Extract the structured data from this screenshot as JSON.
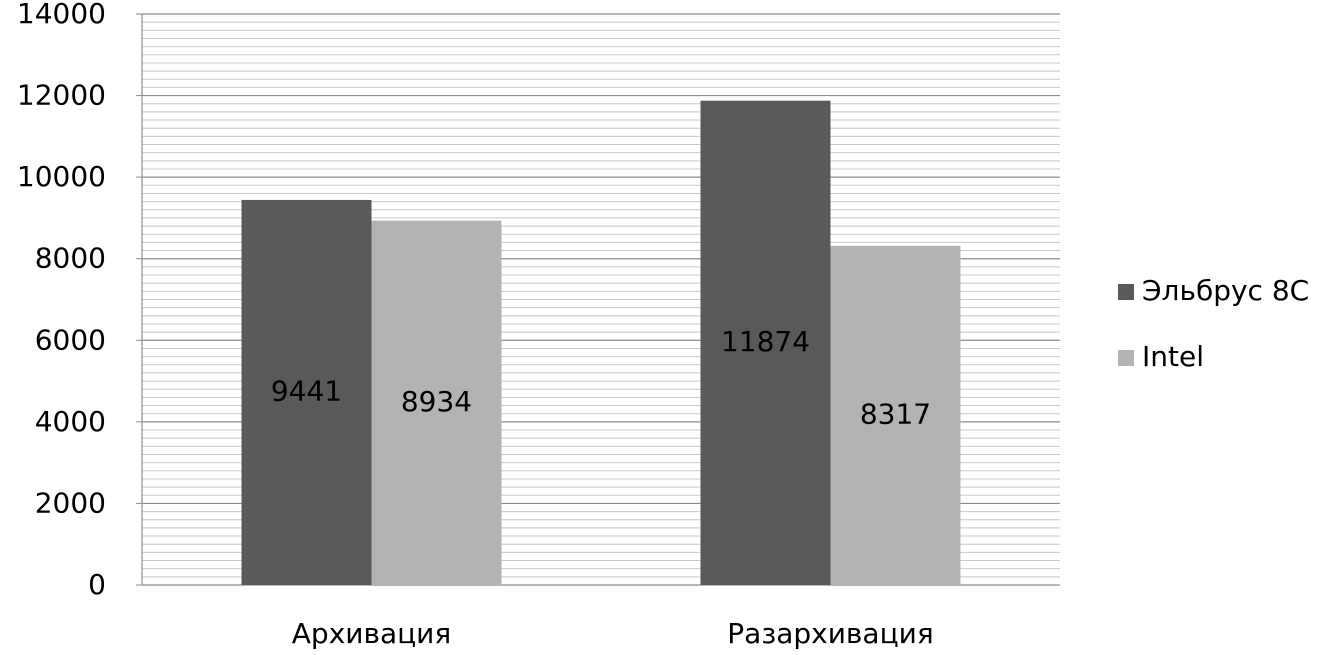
{
  "chart_data": {
    "type": "bar",
    "categories": [
      "Архивация",
      "Разархивация"
    ],
    "series": [
      {
        "name": "Эльбрус 8С",
        "color": "#595959",
        "values": [
          9441,
          11874
        ]
      },
      {
        "name": "Intel",
        "color": "#b3b3b3",
        "values": [
          8934,
          8317
        ]
      }
    ],
    "ylim": [
      0,
      14000
    ],
    "yticks": [
      0,
      2000,
      4000,
      6000,
      8000,
      10000,
      12000,
      14000
    ],
    "grid": true,
    "minor_grid": 10,
    "legend": "right",
    "data_labels": true
  }
}
